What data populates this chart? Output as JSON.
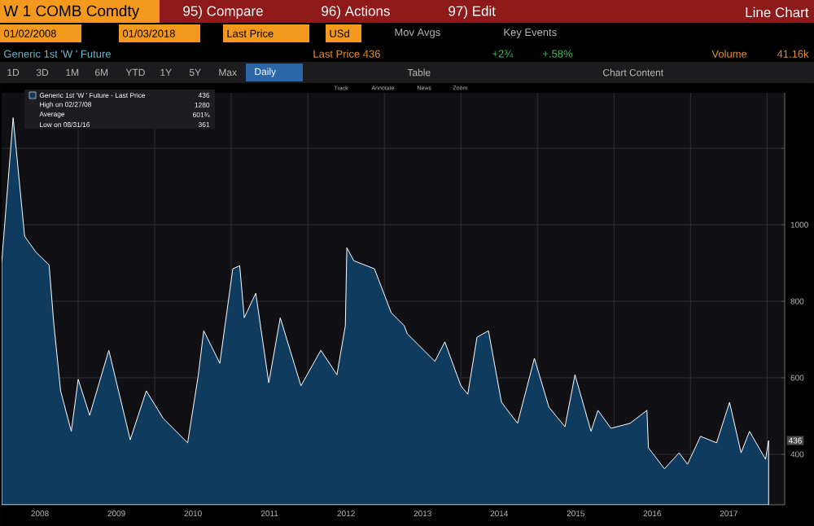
{
  "chart_data": {
    "type": "area",
    "title": "W 1 COMB Comdty",
    "subtitle": "Generic 1st 'W ' Future",
    "x": [
      2008.0,
      2008.15,
      2008.3,
      2008.45,
      2008.62,
      2008.68,
      2008.77,
      2008.91,
      2009.0,
      2009.15,
      2009.4,
      2009.68,
      2009.89,
      2010.11,
      2010.43,
      2010.57,
      2010.64,
      2010.85,
      2011.02,
      2011.11,
      2011.17,
      2011.32,
      2011.49,
      2011.64,
      2011.91,
      2012.17,
      2012.38,
      2012.49,
      2012.51,
      2012.6,
      2012.87,
      2013.09,
      2013.26,
      2013.3,
      2013.66,
      2013.79,
      2014.0,
      2014.09,
      2014.21,
      2014.36,
      2014.53,
      2014.74,
      2014.96,
      2015.15,
      2015.36,
      2015.49,
      2015.7,
      2015.79,
      2015.96,
      2016.21,
      2016.43,
      2016.45,
      2016.66,
      2016.85,
      2016.96,
      2017.13,
      2017.34,
      2017.51,
      2017.66,
      2017.77,
      2017.98,
      2018.02
    ],
    "series": [
      {
        "name": "Generic 1st 'W ' Future - Last Price",
        "color": "#0f3b5f",
        "values": [
          900,
          1280,
          970,
          928,
          895,
          745,
          566,
          460,
          596,
          502,
          672,
          438,
          566,
          494,
          430,
          608,
          723,
          638,
          885,
          893,
          757,
          821,
          587,
          757,
          579,
          672,
          608,
          736,
          940,
          906,
          885,
          770,
          736,
          715,
          643,
          694,
          579,
          557,
          706,
          723,
          536,
          481,
          651,
          523,
          472,
          608,
          460,
          515,
          468,
          481,
          515,
          417,
          362,
          404,
          374,
          447,
          430,
          536,
          404,
          460,
          387,
          436
        ]
      }
    ],
    "xlim": [
      2008.0,
      2018.23
    ],
    "ylim": [
      268,
      1345
    ],
    "xticks": [
      {
        "value": 2008.5,
        "label": "2008"
      },
      {
        "value": 2009.5,
        "label": "2009"
      },
      {
        "value": 2010.5,
        "label": "2010"
      },
      {
        "value": 2011.5,
        "label": "2011"
      },
      {
        "value": 2012.5,
        "label": "2012"
      },
      {
        "value": 2013.5,
        "label": "2013"
      },
      {
        "value": 2014.5,
        "label": "2014"
      },
      {
        "value": 2015.5,
        "label": "2015"
      },
      {
        "value": 2016.5,
        "label": "2016"
      },
      {
        "value": 2017.5,
        "label": "2017"
      },
      {
        "value": 2009,
        "label": null
      },
      {
        "value": 2010,
        "label": null
      },
      {
        "value": 2011,
        "label": null
      },
      {
        "value": 2012,
        "label": null
      },
      {
        "value": 2013,
        "label": null
      },
      {
        "value": 2014,
        "label": null
      },
      {
        "value": 2015,
        "label": null
      },
      {
        "value": 2016,
        "label": null
      },
      {
        "value": 2017,
        "label": null
      },
      {
        "value": 2018,
        "label": null
      }
    ],
    "yticks": [
      400,
      600,
      800,
      1000,
      {
        "value": 1200,
        "label": null
      }
    ],
    "grid": true,
    "legend": "top left",
    "annotations": [
      "95) Compare",
      "96) Actions",
      "97) Edit",
      "Line Chart",
      "01/02/2008",
      "01/03/2018",
      "Last Price",
      "USd",
      "Mov Avgs",
      "Key Events",
      "Last Price 436",
      "+2¾",
      "+.58%",
      "Volume",
      "41.16k",
      "1D",
      "3D",
      "1M",
      "6M",
      "YTD",
      "1Y",
      "5Y",
      "Max",
      "Daily",
      "Table",
      "Chart Content",
      "Track",
      "Annotate",
      "News",
      "Zoom",
      "436",
      "High on 02/27/08",
      "1280",
      "Average",
      "601¾",
      "Low on 08/31/16",
      "361",
      {
        "text": "436",
        "x": 2018.02,
        "y": 436
      }
    ]
  }
}
